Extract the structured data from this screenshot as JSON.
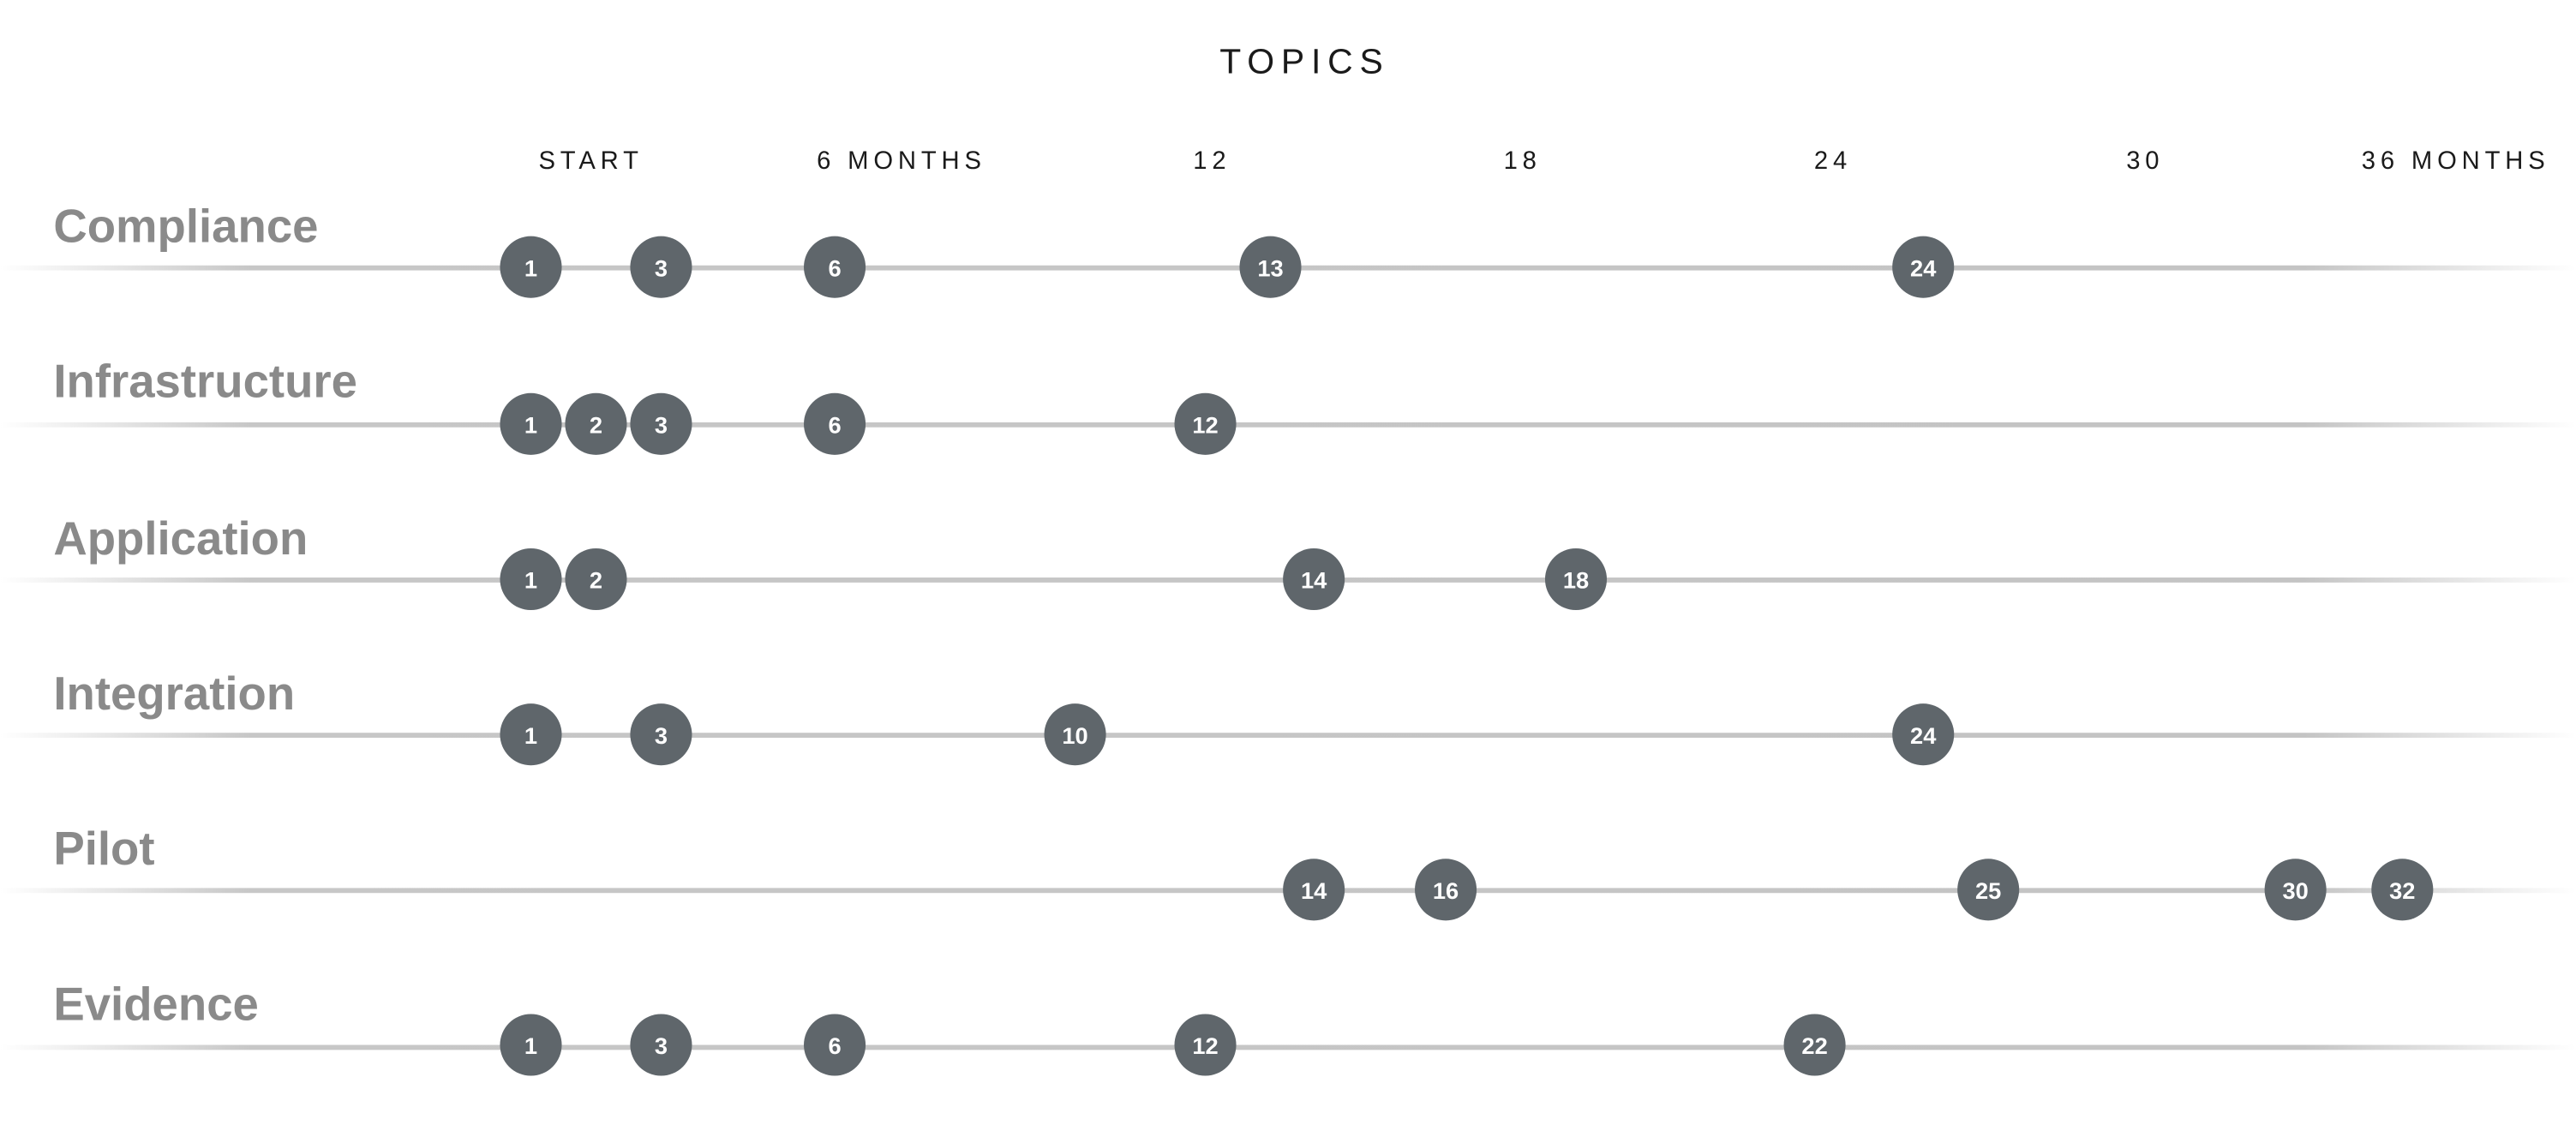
{
  "title": "TOPICS",
  "axis": {
    "ticks": [
      "START",
      "6 MONTHS",
      "12",
      "18",
      "24",
      "30",
      "36 MONTHS"
    ]
  },
  "rows": [
    {
      "label": "Compliance",
      "milestones": [
        "1",
        "3",
        "6",
        "13",
        "24"
      ]
    },
    {
      "label": "Infrastructure",
      "milestones": [
        "1",
        "2",
        "3",
        "6",
        "12"
      ]
    },
    {
      "label": "Application",
      "milestones": [
        "1",
        "2",
        "14",
        "18"
      ]
    },
    {
      "label": "Integration",
      "milestones": [
        "1",
        "3",
        "10",
        "24"
      ]
    },
    {
      "label": "Pilot",
      "milestones": [
        "14",
        "16",
        "25",
        "30",
        "32"
      ]
    },
    {
      "label": "Evidence",
      "milestones": [
        "1",
        "3",
        "6",
        "12",
        "22"
      ]
    }
  ],
  "colors": {
    "milestone_fill": "#5f666b",
    "milestone_text": "#ffffff",
    "row_label": "#8a8a8a",
    "title_text": "#1a1a1a",
    "track_line": "#c7c7c7"
  }
}
